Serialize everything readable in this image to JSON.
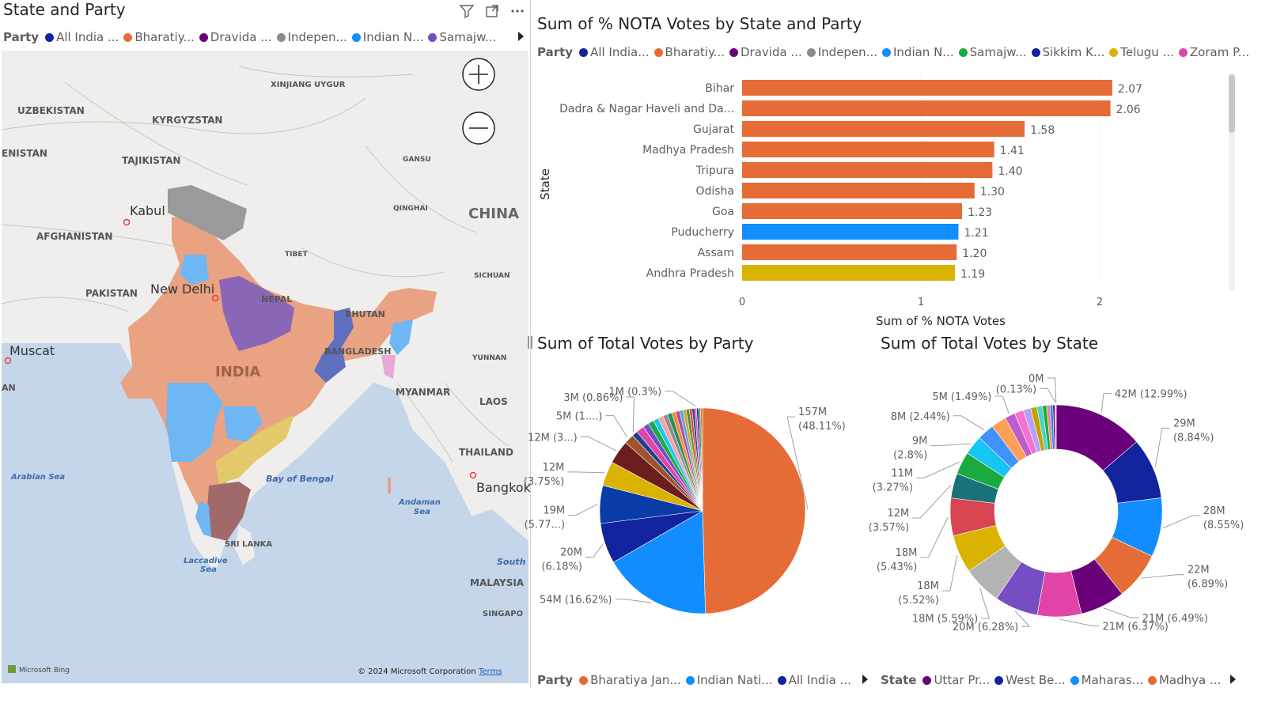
{
  "map_visual": {
    "title": "State and Party",
    "legend_title": "Party",
    "legend": [
      {
        "label": "All India ...",
        "color": "#12239E"
      },
      {
        "label": "Bharatiy...",
        "color": "#E66C37"
      },
      {
        "label": "Dravida ...",
        "color": "#6B007B"
      },
      {
        "label": "Indepen...",
        "color": "#8C8C8C"
      },
      {
        "label": "Indian N...",
        "color": "#118DFF"
      },
      {
        "label": "Samajw...",
        "color": "#744EC2"
      }
    ],
    "labels": {
      "xinjiang": "XINJIANG UYGUR",
      "uzbekistan": "UZBEKISTAN",
      "kyrgyzstan": "KYRGYZSTAN",
      "enistan": "ENISTAN",
      "tajikistan": "TAJIKISTAN",
      "gansu": "GANSU",
      "kabul": "Kabul",
      "qinghai": "QINGHAI",
      "china": "CHINA",
      "afghanistan": "AFGHANISTAN",
      "tibet": "TIBET",
      "sichuan": "SICHUAN",
      "pakistan": "PAKISTAN",
      "newdelhi": "New Delhi",
      "nepal": "NEPAL",
      "bhutan": "BHUTAN",
      "muscat": "Muscat",
      "bangladesh": "BANGLADESH",
      "yunnan": "YUNNAN",
      "an": "AN",
      "india": "INDIA",
      "myanmar": "MYANMAR",
      "laos": "LAOS",
      "thailand": "THAILAND",
      "arabiansea": "Arabian Sea",
      "bayofbengal": "Bay of Bengal",
      "bangkok": "Bangkok",
      "andaman": "Andaman",
      "sea": "Sea",
      "srilanka": "SRI LANKA",
      "laccadive": "Laccadive",
      "sea2": "Sea",
      "south": "South",
      "malaysia": "MALAYSIA",
      "singapo": "SINGAPO"
    },
    "attribution": "Microsoft Bing",
    "copyright": "© 2024 Microsoft Corporation",
    "terms": "Terms"
  },
  "bar_visual": {
    "title": "Sum of % NOTA Votes by State and Party",
    "legend_title": "Party",
    "legend": [
      {
        "label": "All India...",
        "color": "#12239E"
      },
      {
        "label": "Bharatiy...",
        "color": "#E66C37"
      },
      {
        "label": "Dravida ...",
        "color": "#6B007B"
      },
      {
        "label": "Indepen...",
        "color": "#8C8C8C"
      },
      {
        "label": "Indian N...",
        "color": "#118DFF"
      },
      {
        "label": "Samajw...",
        "color": "#1AAB40"
      },
      {
        "label": "Sikkim K...",
        "color": "#12239E"
      },
      {
        "label": "Telugu ...",
        "color": "#D9B300"
      },
      {
        "label": "Zoram P...",
        "color": "#E044A7"
      }
    ]
  },
  "pie_party": {
    "title": "Sum of Total Votes by Party",
    "legend_title": "Party",
    "legend": [
      {
        "label": "Bharatiya Jan...",
        "color": "#E66C37"
      },
      {
        "label": "Indian Nati...",
        "color": "#118DFF"
      },
      {
        "label": "All India ...",
        "color": "#12239E"
      }
    ]
  },
  "donut_state": {
    "title": "Sum of Total Votes by State",
    "legend_title": "State",
    "legend": [
      {
        "label": "Uttar Pr...",
        "color": "#6B007B"
      },
      {
        "label": "West Be...",
        "color": "#12239E"
      },
      {
        "label": "Maharas...",
        "color": "#118DFF"
      },
      {
        "label": "Madhya ...",
        "color": "#E66C37"
      }
    ]
  },
  "chart_data": [
    {
      "type": "bar",
      "orientation": "horizontal",
      "title": "Sum of % NOTA Votes by State and Party",
      "xlabel": "Sum of % NOTA Votes",
      "ylabel": "State",
      "xlim": [
        0,
        2
      ],
      "xticks": [
        "0",
        "1",
        "2"
      ],
      "categories": [
        "Bihar",
        "Dadra & Nagar Haveli and Da...",
        "Gujarat",
        "Madhya Pradesh",
        "Tripura",
        "Odisha",
        "Goa",
        "Puducherry",
        "Assam",
        "Andhra Pradesh"
      ],
      "values": [
        2.07,
        2.06,
        1.58,
        1.41,
        1.4,
        1.3,
        1.23,
        1.21,
        1.2,
        1.19
      ],
      "value_labels": [
        "2.07",
        "2.06",
        "1.58",
        "1.41",
        "1.40",
        "1.30",
        "1.23",
        "1.21",
        "1.20",
        "1.19"
      ],
      "colors": [
        "#E66C37",
        "#E66C37",
        "#E66C37",
        "#E66C37",
        "#E66C37",
        "#E66C37",
        "#E66C37",
        "#118DFF",
        "#E66C37",
        "#D9B300"
      ]
    },
    {
      "type": "pie",
      "title": "Sum of Total Votes by Party",
      "slices": [
        {
          "value": 48.11,
          "color": "#E66C37",
          "label1": "157M",
          "label2": "(48.11%)"
        },
        {
          "value": 16.62,
          "color": "#118DFF",
          "label1": "54M (16.62%)",
          "label2": ""
        },
        {
          "value": 6.18,
          "color": "#12239E",
          "label1": "20M",
          "label2": "(6.18%)"
        },
        {
          "value": 5.77,
          "color": "#0A3CA8",
          "label1": "19M",
          "label2": "(5.77...)"
        },
        {
          "value": 3.75,
          "color": "#D9B300",
          "label1": "12M",
          "label2": "(3.75%)"
        },
        {
          "value": 3.6,
          "color": "#6B1E1E",
          "label1": "12M (3...)",
          "label2": ""
        },
        {
          "value": 1.5,
          "color": "#A0522D",
          "label1": "5M (1....)",
          "label2": ""
        },
        {
          "value": 0.86,
          "color": "#1B3F8F",
          "label1": "3M (0.86%)",
          "label2": ""
        },
        {
          "value": 1.2,
          "color": "#E044A7",
          "label1": "",
          "label2": ""
        },
        {
          "value": 0.9,
          "color": "#744EC2",
          "label1": "",
          "label2": ""
        },
        {
          "value": 0.9,
          "color": "#1AAB40",
          "label1": "",
          "label2": ""
        },
        {
          "value": 0.8,
          "color": "#15C6F4",
          "label1": "",
          "label2": ""
        },
        {
          "value": 0.8,
          "color": "#F5A3A3",
          "label1": "",
          "label2": ""
        },
        {
          "value": 0.7,
          "color": "#8C8C8C",
          "label1": "",
          "label2": ""
        },
        {
          "value": 0.7,
          "color": "#2C8C5C",
          "label1": "",
          "label2": ""
        },
        {
          "value": 0.6,
          "color": "#F28B32",
          "label1": "",
          "label2": ""
        },
        {
          "value": 0.6,
          "color": "#B04C9C",
          "label1": "",
          "label2": ""
        },
        {
          "value": 0.5,
          "color": "#4FA3D9",
          "label1": "",
          "label2": ""
        },
        {
          "value": 0.5,
          "color": "#C8A43A",
          "label1": "",
          "label2": ""
        },
        {
          "value": 0.5,
          "color": "#5E8C31",
          "label1": "",
          "label2": ""
        },
        {
          "value": 0.4,
          "color": "#D8453A",
          "label1": "",
          "label2": ""
        },
        {
          "value": 0.4,
          "color": "#3A3A8C",
          "label1": "",
          "label2": ""
        },
        {
          "value": 0.3,
          "color": "#9C6AD8",
          "label1": "1M (0.3%)",
          "label2": ""
        },
        {
          "value": 0.3,
          "color": "#6B007B",
          "label1": "",
          "label2": ""
        },
        {
          "value": 0.3,
          "color": "#1AAB40",
          "label1": "",
          "label2": ""
        },
        {
          "value": 0.3,
          "color": "#E66C37",
          "label1": "",
          "label2": ""
        }
      ]
    },
    {
      "type": "pie",
      "subtype": "donut",
      "title": "Sum of Total Votes by State",
      "slices": [
        {
          "value": 12.99,
          "color": "#6B007B",
          "label1": "42M (12.99%)",
          "label2": ""
        },
        {
          "value": 8.84,
          "color": "#12239E",
          "label1": "29M",
          "label2": "(8.84%)"
        },
        {
          "value": 8.55,
          "color": "#118DFF",
          "label1": "28M",
          "label2": "(8.55%)"
        },
        {
          "value": 6.89,
          "color": "#E66C37",
          "label1": "22M",
          "label2": "(6.89%)"
        },
        {
          "value": 6.49,
          "color": "#6B007B",
          "label1": "21M (6.49%)",
          "label2": ""
        },
        {
          "value": 6.37,
          "color": "#E044A7",
          "label1": "21M (6.37%)",
          "label2": ""
        },
        {
          "value": 6.28,
          "color": "#744EC2",
          "label1": "20M (6.28%)",
          "label2": ""
        },
        {
          "value": 5.59,
          "color": "#B3B3B3",
          "label1": "18M (5.59%)",
          "label2": ""
        },
        {
          "value": 5.52,
          "color": "#D9B300",
          "label1": "18M",
          "label2": "(5.52%)"
        },
        {
          "value": 5.43,
          "color": "#D64550",
          "label1": "18M",
          "label2": "(5.43%)"
        },
        {
          "value": 3.57,
          "color": "#197278",
          "label1": "12M",
          "label2": "(3.57%)"
        },
        {
          "value": 3.27,
          "color": "#1AAB40",
          "label1": "11M",
          "label2": "(3.27%)"
        },
        {
          "value": 2.8,
          "color": "#15C6F4",
          "label1": "9M",
          "label2": "(2.8%)"
        },
        {
          "value": 2.44,
          "color": "#4092FF",
          "label1": "8M (2.44%)",
          "label2": ""
        },
        {
          "value": 2.2,
          "color": "#FFA058",
          "label1": "",
          "label2": ""
        },
        {
          "value": 1.49,
          "color": "#BE5DC9",
          "label1": "5M (1.49%)",
          "label2": ""
        },
        {
          "value": 1.3,
          "color": "#F472D0",
          "label1": "",
          "label2": ""
        },
        {
          "value": 1.1,
          "color": "#B5A1FF",
          "label1": "",
          "label2": ""
        },
        {
          "value": 0.9,
          "color": "#C4A200",
          "label1": "",
          "label2": ""
        },
        {
          "value": 0.8,
          "color": "#4FD1C5",
          "label1": "",
          "label2": ""
        },
        {
          "value": 0.6,
          "color": "#1AAB40",
          "label1": "",
          "label2": ""
        },
        {
          "value": 0.5,
          "color": "#FF8080",
          "label1": "",
          "label2": ""
        },
        {
          "value": 0.4,
          "color": "#118DFF",
          "label1": "",
          "label2": ""
        },
        {
          "value": 0.3,
          "color": "#6B007B",
          "label1": "",
          "label2": ""
        },
        {
          "value": 0.13,
          "color": "#D64550",
          "label1": "(0.13%)",
          "label2": ""
        },
        {
          "value": 0.05,
          "color": "#E66C37",
          "label1": "0M",
          "label2": ""
        }
      ]
    }
  ]
}
